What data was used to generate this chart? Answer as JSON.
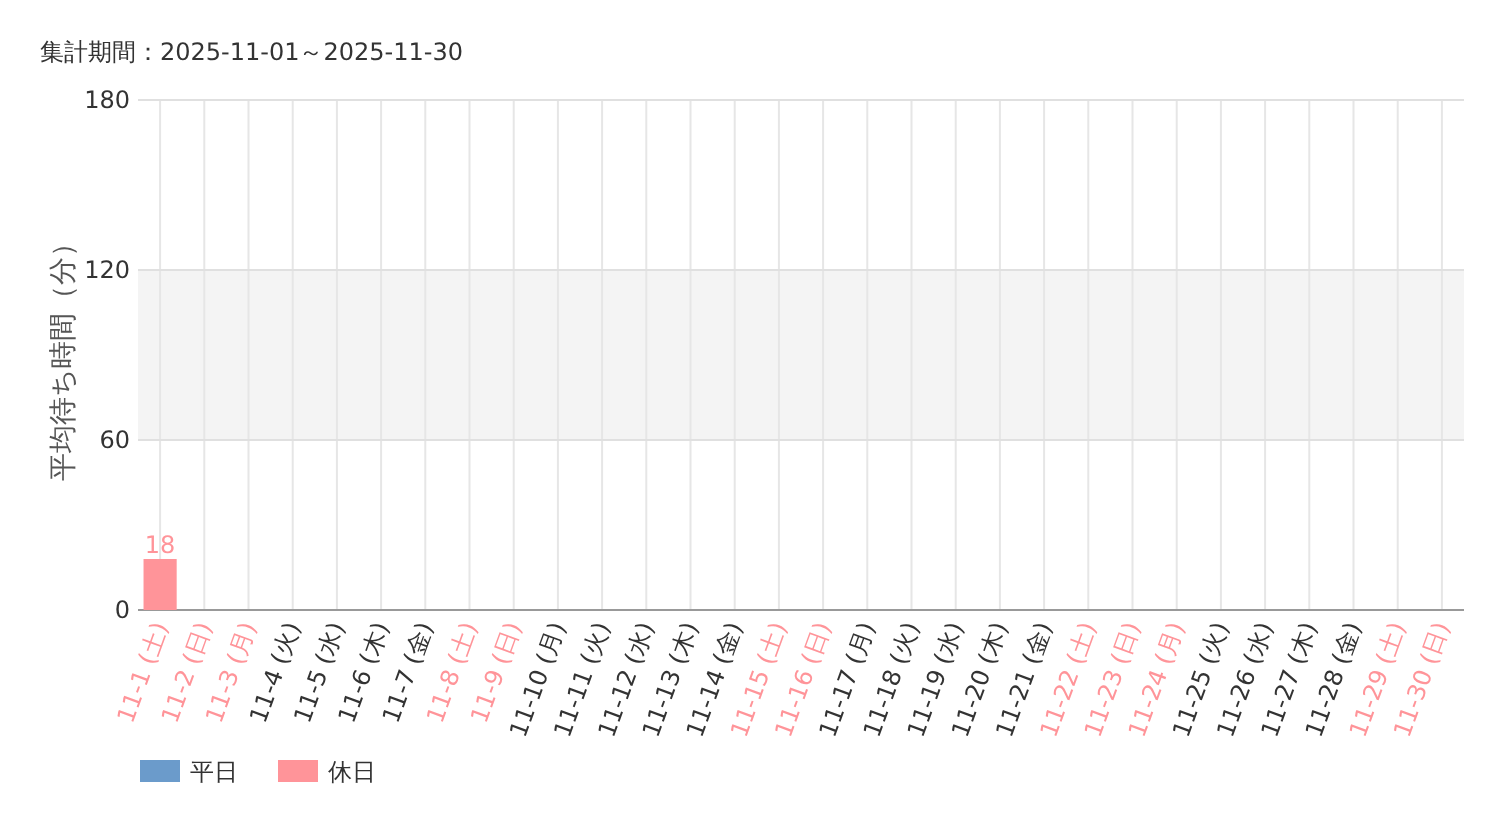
{
  "chart_data": {
    "type": "bar",
    "title": "集計期間：2025-11-01～2025-11-30",
    "ylabel": "平均待ち時間（分）",
    "categories": [
      "11-1 (土)",
      "11-2 (日)",
      "11-3 (月)",
      "11-4 (火)",
      "11-5 (水)",
      "11-6 (木)",
      "11-7 (金)",
      "11-8 (土)",
      "11-9 (日)",
      "11-10 (月)",
      "11-11 (火)",
      "11-12 (水)",
      "11-13 (木)",
      "11-14 (金)",
      "11-15 (土)",
      "11-16 (日)",
      "11-17 (月)",
      "11-18 (火)",
      "11-19 (水)",
      "11-20 (木)",
      "11-21 (金)",
      "11-22 (土)",
      "11-23 (日)",
      "11-24 (月)",
      "11-25 (火)",
      "11-26 (水)",
      "11-27 (木)",
      "11-28 (金)",
      "11-29 (土)",
      "11-30 (日)"
    ],
    "colors": [
      "#ff9499",
      "#ff9499",
      "#ff9499",
      "#6b9bcb",
      "#6b9bcb",
      "#6b9bcb",
      "#6b9bcb",
      "#ff9499",
      "#ff9499",
      "#6b9bcb",
      "#6b9bcb",
      "#6b9bcb",
      "#6b9bcb",
      "#6b9bcb",
      "#ff9499",
      "#ff9499",
      "#6b9bcb",
      "#6b9bcb",
      "#6b9bcb",
      "#6b9bcb",
      "#6b9bcb",
      "#ff9499",
      "#ff9499",
      "#ff9499",
      "#6b9bcb",
      "#6b9bcb",
      "#6b9bcb",
      "#6b9bcb",
      "#ff9499",
      "#ff9499"
    ],
    "series": [
      {
        "name": "平日",
        "color": "#6b9bcb",
        "values": [
          null,
          null,
          null,
          null,
          null,
          null,
          null,
          null,
          null,
          null,
          null,
          null,
          null,
          null,
          null,
          null,
          null,
          null,
          null,
          null,
          null,
          null,
          null,
          null,
          null,
          null,
          null,
          null,
          null,
          null
        ]
      },
      {
        "name": "休日",
        "color": "#ff9499",
        "values": [
          18,
          null,
          null,
          null,
          null,
          null,
          null,
          null,
          null,
          null,
          null,
          null,
          null,
          null,
          null,
          null,
          null,
          null,
          null,
          null,
          null,
          null,
          null,
          null,
          null,
          null,
          null,
          null,
          null,
          null
        ]
      }
    ],
    "ylim": [
      0,
      180
    ],
    "yticks": [
      0,
      60,
      120,
      180
    ],
    "bands": [
      {
        "axis": "y",
        "from": 60,
        "to": 120,
        "color": "#f4f4f4"
      }
    ],
    "grid": true,
    "legend": "bottom left",
    "data_labels": true
  }
}
